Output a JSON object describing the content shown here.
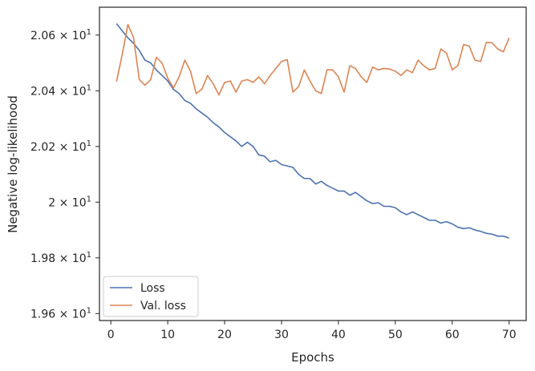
{
  "chart_data": {
    "type": "line",
    "xlabel": "Epochs",
    "ylabel": "Negative log-likelihood",
    "xlim": [
      -2,
      73
    ],
    "ylim": [
      19.575,
      20.7
    ],
    "xticks": [
      0,
      10,
      20,
      30,
      40,
      50,
      60,
      70
    ],
    "yticks": [
      {
        "value": 19.6,
        "mantissa": "1.96",
        "exp": "1"
      },
      {
        "value": 19.8,
        "mantissa": "1.98",
        "exp": "1"
      },
      {
        "value": 20.0,
        "mantissa": "2",
        "exp": "1"
      },
      {
        "value": 20.2,
        "mantissa": "2.02",
        "exp": "1"
      },
      {
        "value": 20.4,
        "mantissa": "2.04",
        "exp": "1"
      },
      {
        "value": 20.6,
        "mantissa": "2.06",
        "exp": "1"
      }
    ],
    "grid": false,
    "legend_position": "lower-left",
    "x": [
      1,
      2,
      3,
      4,
      5,
      6,
      7,
      8,
      9,
      10,
      11,
      12,
      13,
      14,
      15,
      16,
      17,
      18,
      19,
      20,
      21,
      22,
      23,
      24,
      25,
      26,
      27,
      28,
      29,
      30,
      31,
      32,
      33,
      34,
      35,
      36,
      37,
      38,
      39,
      40,
      41,
      42,
      43,
      44,
      45,
      46,
      47,
      48,
      49,
      50,
      51,
      52,
      53,
      54,
      55,
      56,
      57,
      58,
      59,
      60,
      61,
      62,
      63,
      64,
      65,
      66,
      67,
      68,
      69,
      70
    ],
    "series": [
      {
        "name": "Loss",
        "color": "#4c72b0",
        "values": [
          20.641,
          20.615,
          20.59,
          20.57,
          20.545,
          20.51,
          20.5,
          20.475,
          20.455,
          20.435,
          20.405,
          20.39,
          20.365,
          20.355,
          20.335,
          20.32,
          20.305,
          20.285,
          20.27,
          20.25,
          20.235,
          20.22,
          20.2,
          20.215,
          20.2,
          20.17,
          20.165,
          20.145,
          20.15,
          20.135,
          20.13,
          20.125,
          20.1,
          20.085,
          20.085,
          20.065,
          20.075,
          20.06,
          20.05,
          20.04,
          20.04,
          20.025,
          20.035,
          20.02,
          20.005,
          19.995,
          19.998,
          19.985,
          19.985,
          19.98,
          19.965,
          19.955,
          19.965,
          19.955,
          19.945,
          19.935,
          19.935,
          19.925,
          19.93,
          19.922,
          19.91,
          19.905,
          19.908,
          19.9,
          19.895,
          19.888,
          19.885,
          19.878,
          19.878,
          19.871
        ]
      },
      {
        "name": "Val. loss",
        "color": "#dd8452",
        "values": [
          20.433,
          20.53,
          20.638,
          20.59,
          20.44,
          20.42,
          20.44,
          20.52,
          20.5,
          20.445,
          20.41,
          20.45,
          20.51,
          20.47,
          20.39,
          20.405,
          20.455,
          20.425,
          20.385,
          20.43,
          20.435,
          20.395,
          20.435,
          20.44,
          20.43,
          20.45,
          20.425,
          20.455,
          20.48,
          20.505,
          20.512,
          20.395,
          20.415,
          20.475,
          20.435,
          20.4,
          20.39,
          20.475,
          20.475,
          20.45,
          20.395,
          20.49,
          20.48,
          20.45,
          20.43,
          20.485,
          20.475,
          20.48,
          20.478,
          20.47,
          20.455,
          20.475,
          20.465,
          20.51,
          20.49,
          20.475,
          20.48,
          20.55,
          20.535,
          20.475,
          20.49,
          20.566,
          20.56,
          20.51,
          20.505,
          20.574,
          20.572,
          20.55,
          20.54,
          20.59
        ]
      }
    ]
  }
}
